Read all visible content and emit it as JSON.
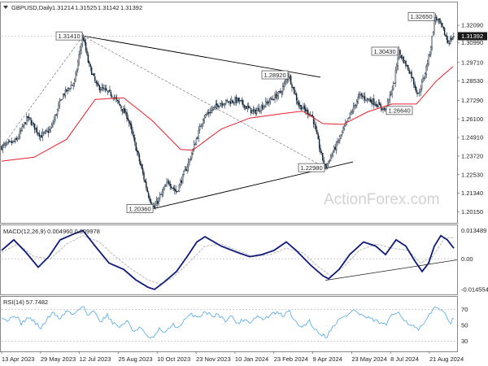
{
  "colors": {
    "candle": "#0b1f33",
    "ma": "#e8202a",
    "macd_line": "#0d1a7a",
    "macd_signal": "#b9b9b9",
    "rsi": "#4ea8e6",
    "trend": "#000000",
    "grid": "#dddddd"
  },
  "chart_data": [
    {
      "type": "candlestick",
      "title": "GBPUSD,Daily",
      "header_values": [
        "1.31214",
        "1.31525",
        "1.31142",
        "1.31392"
      ],
      "price_range": [
        1.195,
        1.335
      ],
      "y_ticks": [
        "1.32090",
        "1.30990",
        "1.29710",
        "1.28530",
        "1.27290",
        "1.26100",
        "1.24910",
        "1.23720",
        "1.22530",
        "1.21340",
        "1.20150"
      ],
      "last_price": "1.31392",
      "watermark": "ActionForex.com",
      "x_tick_labels": [
        "13 Apr 2023",
        "29 May 2023",
        "12 Jul 2023",
        "25 Aug 2023",
        "10 Oct 2023",
        "23 Nov 2023",
        "10 Jan 2024",
        "23 Feb 2024",
        "9 Apr 2024",
        "23 May 2024",
        "8 Jul 2024",
        "21 Aug 2024"
      ],
      "price_path": [
        [
          0,
          1.243
        ],
        [
          18,
          1.247
        ],
        [
          32,
          1.262
        ],
        [
          48,
          1.25
        ],
        [
          60,
          1.254
        ],
        [
          75,
          1.276
        ],
        [
          90,
          1.285
        ],
        [
          96,
          1.304
        ],
        [
          100,
          1.3141
        ],
        [
          107,
          1.296
        ],
        [
          117,
          1.282
        ],
        [
          137,
          1.276
        ],
        [
          155,
          1.262
        ],
        [
          170,
          1.233
        ],
        [
          180,
          1.213
        ],
        [
          187,
          1.2036
        ],
        [
          205,
          1.221
        ],
        [
          215,
          1.214
        ],
        [
          232,
          1.236
        ],
        [
          248,
          1.262
        ],
        [
          268,
          1.271
        ],
        [
          290,
          1.273
        ],
        [
          310,
          1.265
        ],
        [
          328,
          1.272
        ],
        [
          343,
          1.278
        ],
        [
          353,
          1.2892
        ],
        [
          365,
          1.27
        ],
        [
          382,
          1.263
        ],
        [
          392,
          1.24
        ],
        [
          398,
          1.2298
        ],
        [
          415,
          1.248
        ],
        [
          428,
          1.263
        ],
        [
          440,
          1.276
        ],
        [
          457,
          1.272
        ],
        [
          472,
          1.2664
        ],
        [
          483,
          1.285
        ],
        [
          488,
          1.3043
        ],
        [
          503,
          1.29
        ],
        [
          512,
          1.276
        ],
        [
          520,
          1.289
        ],
        [
          527,
          1.305
        ],
        [
          533,
          1.3265
        ],
        [
          541,
          1.32
        ],
        [
          549,
          1.31
        ],
        [
          556,
          1.3139
        ]
      ],
      "ma_path": [
        [
          0,
          1.234
        ],
        [
          40,
          1.2365
        ],
        [
          80,
          1.248
        ],
        [
          115,
          1.2735
        ],
        [
          150,
          1.2745
        ],
        [
          185,
          1.26
        ],
        [
          220,
          1.2415
        ],
        [
          235,
          1.241
        ],
        [
          270,
          1.2545
        ],
        [
          305,
          1.2615
        ],
        [
          340,
          1.264
        ],
        [
          370,
          1.266
        ],
        [
          395,
          1.258
        ],
        [
          420,
          1.2575
        ],
        [
          450,
          1.2655
        ],
        [
          480,
          1.2705
        ],
        [
          510,
          1.2705
        ],
        [
          535,
          1.2855
        ],
        [
          555,
          1.2945
        ]
      ],
      "annotations": [
        {
          "label": "1.31410",
          "x": 100,
          "price": 1.3141,
          "side": "left"
        },
        {
          "label": "1.28920",
          "x": 353,
          "price": 1.2892,
          "side": "left"
        },
        {
          "label": "1.20360",
          "x": 187,
          "price": 1.2036,
          "side": "left"
        },
        {
          "label": "1.22980",
          "x": 398,
          "price": 1.2298,
          "side": "left"
        },
        {
          "label": "1.26640",
          "x": 472,
          "price": 1.2664,
          "side": "right"
        },
        {
          "label": "1.30430",
          "x": 488,
          "price": 1.3043,
          "side": "left"
        },
        {
          "label": "1.32650",
          "x": 533,
          "price": 1.3265,
          "side": "left"
        }
      ],
      "trendlines": [
        {
          "from": [
            100,
            1.3141
          ],
          "to": [
            392,
            1.2877
          ],
          "style": "solid"
        },
        {
          "from": [
            187,
            1.2036
          ],
          "to": [
            432,
            1.2335
          ],
          "style": "solid"
        },
        {
          "from": [
            100,
            1.3141
          ],
          "to": [
            398,
            1.2298
          ],
          "style": "dashed"
        },
        {
          "from": [
            0,
            1.243
          ],
          "to": [
            100,
            1.3141
          ],
          "style": "dashed"
        }
      ],
      "grid": false
    },
    {
      "type": "line",
      "title": "MACD(12,26,9) 0.004960 0.009978",
      "y_ticks": [
        "0.013489",
        "0.00",
        "-0.014554"
      ],
      "y_range": [
        -0.0165,
        0.0155
      ],
      "macd_path": [
        [
          0,
          0.004
        ],
        [
          15,
          0.009
        ],
        [
          30,
          0.003
        ],
        [
          45,
          -0.004
        ],
        [
          58,
          0.001
        ],
        [
          72,
          0.009
        ],
        [
          90,
          0.012
        ],
        [
          100,
          0.0134
        ],
        [
          115,
          0.006
        ],
        [
          132,
          -0.002
        ],
        [
          150,
          -0.005
        ],
        [
          165,
          -0.01
        ],
        [
          180,
          -0.0135
        ],
        [
          188,
          -0.0145
        ],
        [
          200,
          -0.011
        ],
        [
          215,
          -0.006
        ],
        [
          228,
          0.001
        ],
        [
          240,
          0.008
        ],
        [
          250,
          0.0105
        ],
        [
          270,
          0.006
        ],
        [
          290,
          0.003
        ],
        [
          305,
          0.001
        ],
        [
          320,
          0.002
        ],
        [
          335,
          0.004
        ],
        [
          350,
          0.008
        ],
        [
          362,
          0.004
        ],
        [
          380,
          -0.003
        ],
        [
          395,
          -0.008
        ],
        [
          402,
          -0.0095
        ],
        [
          415,
          -0.005
        ],
        [
          428,
          0.002
        ],
        [
          445,
          0.008
        ],
        [
          460,
          0.006
        ],
        [
          472,
          0.002
        ],
        [
          485,
          0.009
        ],
        [
          497,
          0.006
        ],
        [
          508,
          -0.001
        ],
        [
          517,
          -0.006
        ],
        [
          525,
          -0.002
        ],
        [
          532,
          0.006
        ],
        [
          540,
          0.011
        ],
        [
          548,
          0.009
        ],
        [
          556,
          0.005
        ]
      ],
      "signal_path": [
        [
          0,
          0.003
        ],
        [
          20,
          0.007
        ],
        [
          40,
          0.001
        ],
        [
          60,
          0.0
        ],
        [
          80,
          0.007
        ],
        [
          100,
          0.011
        ],
        [
          120,
          0.008
        ],
        [
          140,
          0.001
        ],
        [
          160,
          -0.005
        ],
        [
          180,
          -0.01
        ],
        [
          195,
          -0.012
        ],
        [
          210,
          -0.009
        ],
        [
          230,
          -0.002
        ],
        [
          250,
          0.006
        ],
        [
          270,
          0.007
        ],
        [
          290,
          0.004
        ],
        [
          310,
          0.001
        ],
        [
          330,
          0.002
        ],
        [
          350,
          0.005
        ],
        [
          370,
          0.003
        ],
        [
          390,
          -0.004
        ],
        [
          405,
          -0.008
        ],
        [
          420,
          -0.004
        ],
        [
          440,
          0.004
        ],
        [
          460,
          0.007
        ],
        [
          480,
          0.005
        ],
        [
          500,
          0.004
        ],
        [
          515,
          -0.002
        ],
        [
          530,
          0.001
        ],
        [
          545,
          0.0099
        ],
        [
          556,
          0.0099
        ]
      ],
      "trendline": {
        "from": [
          398,
          -0.0102
        ],
        "to": [
          560,
          -0.0005
        ]
      }
    },
    {
      "type": "line",
      "title": "RSI(14) 57.7482",
      "y_ticks": [
        "70",
        "50",
        "30"
      ],
      "y_range": [
        18,
        85
      ],
      "levels": [
        70,
        30
      ],
      "rsi_path": [
        [
          0,
          62
        ],
        [
          8,
          55
        ],
        [
          16,
          64
        ],
        [
          24,
          52
        ],
        [
          32,
          60
        ],
        [
          40,
          55
        ],
        [
          48,
          46
        ],
        [
          56,
          58
        ],
        [
          64,
          66
        ],
        [
          72,
          58
        ],
        [
          80,
          69
        ],
        [
          88,
          63
        ],
        [
          96,
          72
        ],
        [
          100,
          76
        ],
        [
          106,
          62
        ],
        [
          114,
          68
        ],
        [
          122,
          55
        ],
        [
          130,
          63
        ],
        [
          138,
          52
        ],
        [
          146,
          48
        ],
        [
          154,
          56
        ],
        [
          162,
          42
        ],
        [
          170,
          48
        ],
        [
          178,
          36
        ],
        [
          186,
          33
        ],
        [
          194,
          45
        ],
        [
          202,
          40
        ],
        [
          210,
          52
        ],
        [
          218,
          46
        ],
        [
          226,
          58
        ],
        [
          234,
          64
        ],
        [
          242,
          60
        ],
        [
          250,
          68
        ],
        [
          258,
          62
        ],
        [
          266,
          64
        ],
        [
          274,
          56
        ],
        [
          282,
          62
        ],
        [
          290,
          52
        ],
        [
          298,
          58
        ],
        [
          306,
          54
        ],
        [
          314,
          62
        ],
        [
          322,
          57
        ],
        [
          330,
          63
        ],
        [
          338,
          66
        ],
        [
          346,
          62
        ],
        [
          354,
          68
        ],
        [
          362,
          52
        ],
        [
          370,
          48
        ],
        [
          378,
          56
        ],
        [
          386,
          44
        ],
        [
          394,
          38
        ],
        [
          400,
          36
        ],
        [
          408,
          50
        ],
        [
          416,
          58
        ],
        [
          424,
          62
        ],
        [
          432,
          70
        ],
        [
          440,
          64
        ],
        [
          448,
          60
        ],
        [
          456,
          57
        ],
        [
          464,
          54
        ],
        [
          472,
          50
        ],
        [
          480,
          62
        ],
        [
          488,
          68
        ],
        [
          496,
          56
        ],
        [
          504,
          50
        ],
        [
          512,
          44
        ],
        [
          520,
          52
        ],
        [
          528,
          66
        ],
        [
          534,
          76
        ],
        [
          540,
          68
        ],
        [
          546,
          64
        ],
        [
          552,
          54
        ],
        [
          556,
          58
        ]
      ]
    }
  ]
}
